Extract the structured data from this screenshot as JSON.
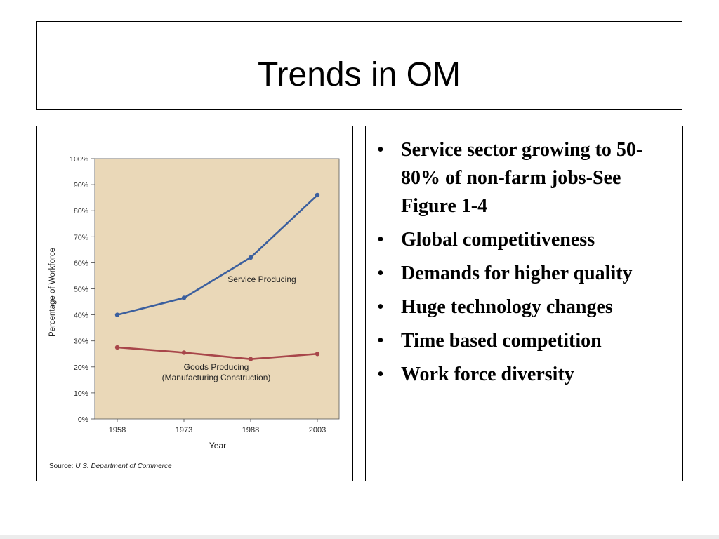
{
  "slide": {
    "title": "Trends in OM",
    "bullets": [
      "Service sector growing to 50-80% of non-farm jobs-See Figure 1-4",
      "Global competitiveness",
      "Demands for higher quality",
      "Huge technology changes",
      "Time based competition",
      "Work force diversity"
    ],
    "bullet_char": "•"
  },
  "chart_data": {
    "type": "line",
    "xlabel": "Year",
    "ylabel": "Percentage of Workforce",
    "x": [
      1958,
      1973,
      1988,
      2003
    ],
    "x_tick_labels": [
      "1958",
      "1973",
      "1988",
      "2003"
    ],
    "y_tick_labels": [
      "0%",
      "10%",
      "20%",
      "30%",
      "40%",
      "50%",
      "60%",
      "70%",
      "80%",
      "90%",
      "100%"
    ],
    "ylim": [
      0,
      100
    ],
    "series": [
      {
        "name": "Service Producing",
        "values": [
          40,
          46.5,
          62,
          86
        ],
        "color": "#3b5f9e"
      },
      {
        "name": "Goods Producing",
        "name_line2": "(Manufacturing Construction)",
        "values": [
          27.5,
          25.5,
          23,
          25
        ],
        "color": "#a8464a"
      }
    ],
    "plot_background": "#ead8b8",
    "source_label": "Source:",
    "source_text": "U.S. Department of Commerce"
  }
}
